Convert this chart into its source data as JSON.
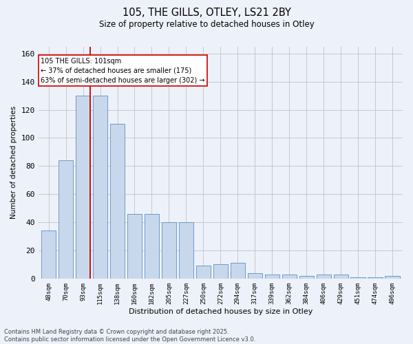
{
  "title1": "105, THE GILLS, OTLEY, LS21 2BY",
  "title2": "Size of property relative to detached houses in Otley",
  "xlabel": "Distribution of detached houses by size in Otley",
  "ylabel": "Number of detached properties",
  "categories": [
    "48sqm",
    "70sqm",
    "93sqm",
    "115sqm",
    "138sqm",
    "160sqm",
    "182sqm",
    "205sqm",
    "227sqm",
    "250sqm",
    "272sqm",
    "294sqm",
    "317sqm",
    "339sqm",
    "362sqm",
    "384sqm",
    "406sqm",
    "429sqm",
    "451sqm",
    "474sqm",
    "496sqm"
  ],
  "values": [
    34,
    84,
    130,
    130,
    110,
    46,
    46,
    40,
    40,
    9,
    10,
    11,
    4,
    3,
    3,
    2,
    3,
    3,
    1,
    1,
    2
  ],
  "bar_color": "#c8d8ec",
  "bar_edge_color": "#5b8ec4",
  "grid_color": "#c8c8c8",
  "background_color": "#edf1f9",
  "annotation_text": "105 THE GILLS: 101sqm\n← 37% of detached houses are smaller (175)\n63% of semi-detached houses are larger (302) →",
  "annotation_box_facecolor": "#ffffff",
  "annotation_box_edgecolor": "#cc0000",
  "vline_color": "#cc0000",
  "vline_x_index": 2,
  "footer_text": "Contains HM Land Registry data © Crown copyright and database right 2025.\nContains public sector information licensed under the Open Government Licence v3.0.",
  "ylim": [
    0,
    165
  ],
  "yticks": [
    0,
    20,
    40,
    60,
    80,
    100,
    120,
    140,
    160
  ]
}
